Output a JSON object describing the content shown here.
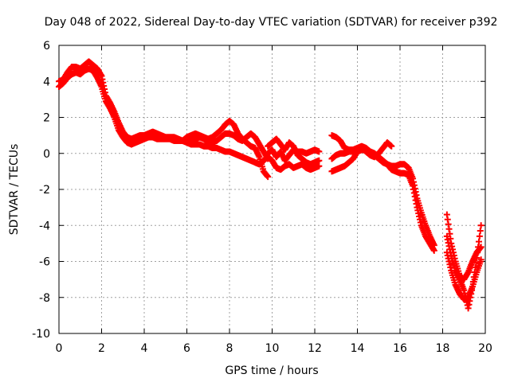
{
  "chart_data": {
    "type": "scatter",
    "title": "Day 048 of 2022, Sidereal Day-to-day VTEC variation (SDTVAR) for receiver p392",
    "xlabel": "GPS time / hours",
    "ylabel": "SDTVAR / TECUs",
    "xlim": [
      0,
      20
    ],
    "ylim": [
      -10,
      6
    ],
    "x_ticks": [
      "0",
      "2",
      "4",
      "6",
      "8",
      "10",
      "12",
      "14",
      "16",
      "18",
      "20"
    ],
    "y_ticks": [
      "6",
      "4",
      "2",
      "0",
      "-2",
      "-4",
      "-6",
      "-8",
      "-10"
    ],
    "grid": true,
    "marker": "+",
    "series": [
      {
        "name": "SDTVAR",
        "color": "#ff0000",
        "tracks": [
          [
            [
              0.0,
              4.0
            ],
            [
              0.2,
              4.1
            ],
            [
              0.4,
              4.5
            ],
            [
              0.6,
              4.8
            ],
            [
              0.8,
              4.8
            ],
            [
              1.0,
              4.7
            ],
            [
              1.2,
              4.9
            ],
            [
              1.4,
              5.1
            ],
            [
              1.6,
              4.9
            ],
            [
              1.8,
              4.7
            ],
            [
              2.0,
              4.3
            ],
            [
              2.2,
              3.2
            ],
            [
              2.4,
              2.8
            ],
            [
              2.6,
              2.3
            ],
            [
              2.8,
              1.7
            ],
            [
              3.0,
              1.2
            ],
            [
              3.2,
              0.9
            ],
            [
              3.4,
              0.8
            ],
            [
              3.6,
              0.9
            ],
            [
              3.8,
              1.0
            ],
            [
              4.0,
              1.0
            ],
            [
              4.2,
              1.1
            ],
            [
              4.4,
              1.2
            ],
            [
              4.6,
              1.1
            ],
            [
              4.8,
              1.0
            ],
            [
              5.0,
              0.9
            ],
            [
              5.2,
              0.9
            ],
            [
              5.4,
              0.9
            ],
            [
              5.6,
              0.8
            ],
            [
              5.8,
              0.7
            ],
            [
              6.0,
              0.6
            ],
            [
              6.2,
              0.5
            ],
            [
              6.4,
              0.5
            ],
            [
              6.6,
              0.5
            ],
            [
              6.8,
              0.4
            ],
            [
              7.0,
              0.4
            ],
            [
              7.2,
              0.3
            ],
            [
              7.4,
              0.3
            ],
            [
              7.6,
              0.2
            ],
            [
              7.8,
              0.1
            ],
            [
              8.0,
              0.1
            ],
            [
              8.2,
              0.0
            ],
            [
              8.4,
              -0.1
            ],
            [
              8.6,
              -0.2
            ],
            [
              8.8,
              -0.3
            ],
            [
              9.0,
              -0.4
            ],
            [
              9.2,
              -0.5
            ],
            [
              9.4,
              -0.6
            ],
            [
              9.6,
              -0.4
            ],
            [
              9.8,
              -0.2
            ]
          ],
          [
            [
              0.0,
              3.7
            ],
            [
              0.2,
              3.9
            ],
            [
              0.4,
              4.2
            ],
            [
              0.6,
              4.4
            ],
            [
              0.8,
              4.5
            ],
            [
              1.0,
              4.4
            ],
            [
              1.2,
              4.6
            ],
            [
              1.4,
              4.7
            ],
            [
              1.6,
              4.6
            ],
            [
              1.8,
              4.2
            ],
            [
              2.0,
              3.7
            ],
            [
              2.2,
              2.9
            ],
            [
              2.4,
              2.5
            ],
            [
              2.6,
              2.0
            ],
            [
              2.8,
              1.3
            ],
            [
              3.0,
              0.9
            ],
            [
              3.2,
              0.6
            ],
            [
              3.4,
              0.5
            ],
            [
              3.6,
              0.6
            ],
            [
              3.8,
              0.7
            ],
            [
              4.0,
              0.8
            ],
            [
              4.2,
              0.9
            ],
            [
              4.4,
              0.9
            ],
            [
              4.6,
              0.8
            ],
            [
              4.8,
              0.8
            ],
            [
              5.0,
              0.8
            ],
            [
              5.2,
              0.8
            ],
            [
              5.4,
              0.7
            ],
            [
              5.6,
              0.7
            ],
            [
              5.8,
              0.7
            ],
            [
              6.0,
              0.9
            ],
            [
              6.2,
              1.0
            ],
            [
              6.4,
              1.1
            ],
            [
              6.6,
              1.0
            ],
            [
              6.8,
              0.9
            ],
            [
              7.0,
              0.8
            ],
            [
              7.2,
              0.9
            ],
            [
              7.4,
              1.1
            ],
            [
              7.6,
              1.3
            ],
            [
              7.8,
              1.6
            ],
            [
              8.0,
              1.8
            ],
            [
              8.2,
              1.6
            ],
            [
              8.4,
              1.1
            ],
            [
              8.6,
              0.8
            ],
            [
              8.8,
              0.6
            ],
            [
              9.0,
              0.4
            ],
            [
              9.2,
              0.3
            ],
            [
              9.4,
              -0.2
            ],
            [
              9.6,
              -1.0
            ],
            [
              9.8,
              -1.3
            ]
          ],
          [
            [
              6.0,
              0.9
            ],
            [
              6.2,
              0.8
            ],
            [
              6.4,
              0.8
            ],
            [
              6.6,
              0.9
            ],
            [
              6.8,
              0.8
            ],
            [
              7.0,
              0.6
            ],
            [
              7.2,
              0.6
            ],
            [
              7.4,
              0.7
            ],
            [
              7.6,
              0.9
            ],
            [
              7.8,
              1.1
            ],
            [
              8.0,
              1.1
            ],
            [
              8.2,
              1.0
            ],
            [
              8.4,
              0.8
            ],
            [
              8.6,
              0.7
            ],
            [
              8.8,
              0.9
            ],
            [
              9.0,
              1.1
            ],
            [
              9.2,
              0.9
            ],
            [
              9.4,
              0.5
            ],
            [
              9.6,
              0.1
            ],
            [
              9.8,
              -0.3
            ]
          ],
          [
            [
              9.8,
              0.4
            ],
            [
              10.0,
              0.6
            ],
            [
              10.2,
              0.8
            ],
            [
              10.4,
              0.5
            ],
            [
              10.6,
              0.2
            ],
            [
              10.8,
              0.6
            ],
            [
              11.0,
              0.4
            ],
            [
              11.2,
              -0.1
            ],
            [
              11.4,
              -0.3
            ],
            [
              11.6,
              -0.5
            ],
            [
              11.8,
              -0.6
            ],
            [
              12.0,
              -0.5
            ],
            [
              12.2,
              -0.4
            ]
          ],
          [
            [
              9.8,
              -0.2
            ],
            [
              10.0,
              -0.4
            ],
            [
              10.2,
              -0.8
            ],
            [
              10.4,
              -0.9
            ],
            [
              10.6,
              -0.7
            ],
            [
              10.8,
              -0.6
            ],
            [
              11.0,
              -0.8
            ],
            [
              11.2,
              -0.7
            ],
            [
              11.4,
              -0.6
            ],
            [
              11.6,
              -0.8
            ],
            [
              11.8,
              -0.9
            ],
            [
              12.0,
              -0.8
            ],
            [
              12.2,
              -0.7
            ]
          ],
          [
            [
              9.8,
              0.0
            ],
            [
              10.0,
              0.2
            ],
            [
              10.2,
              -0.2
            ],
            [
              10.4,
              0.1
            ],
            [
              10.6,
              -0.4
            ],
            [
              10.8,
              -0.1
            ],
            [
              11.0,
              0.2
            ],
            [
              11.2,
              0.1
            ],
            [
              11.4,
              0.1
            ],
            [
              11.6,
              0.0
            ],
            [
              11.8,
              0.1
            ],
            [
              12.0,
              0.2
            ],
            [
              12.2,
              0.1
            ]
          ],
          [
            [
              12.8,
              1.0
            ],
            [
              13.0,
              0.9
            ],
            [
              13.2,
              0.7
            ],
            [
              13.4,
              0.3
            ],
            [
              13.6,
              0.2
            ],
            [
              13.8,
              0.2
            ],
            [
              14.0,
              0.3
            ],
            [
              14.2,
              0.4
            ],
            [
              14.4,
              0.3
            ],
            [
              14.6,
              0.1
            ],
            [
              14.8,
              0.0
            ],
            [
              15.0,
              -0.2
            ],
            [
              15.2,
              -0.4
            ],
            [
              15.4,
              -0.6
            ],
            [
              15.6,
              -0.9
            ],
            [
              15.8,
              -1.0
            ],
            [
              16.0,
              -1.1
            ],
            [
              16.2,
              -1.1
            ],
            [
              16.4,
              -1.2
            ],
            [
              16.6,
              -1.8
            ],
            [
              16.8,
              -3.0
            ],
            [
              17.0,
              -4.0
            ],
            [
              17.2,
              -4.6
            ],
            [
              17.4,
              -5.0
            ],
            [
              17.6,
              -5.4
            ]
          ],
          [
            [
              12.8,
              -1.0
            ],
            [
              13.0,
              -0.9
            ],
            [
              13.2,
              -0.8
            ],
            [
              13.4,
              -0.7
            ],
            [
              13.6,
              -0.5
            ],
            [
              13.8,
              -0.3
            ],
            [
              14.0,
              0.1
            ],
            [
              14.2,
              0.2
            ],
            [
              14.4,
              0.2
            ],
            [
              14.6,
              0.1
            ],
            [
              14.8,
              -0.1
            ],
            [
              15.0,
              -0.3
            ],
            [
              15.2,
              -0.5
            ],
            [
              15.4,
              -0.6
            ],
            [
              15.6,
              -0.7
            ],
            [
              15.8,
              -0.7
            ],
            [
              16.0,
              -0.6
            ],
            [
              16.2,
              -0.6
            ],
            [
              16.4,
              -0.8
            ],
            [
              16.6,
              -1.4
            ],
            [
              16.8,
              -2.5
            ],
            [
              17.0,
              -3.3
            ],
            [
              17.2,
              -4.0
            ],
            [
              17.4,
              -4.6
            ],
            [
              17.6,
              -5.1
            ]
          ],
          [
            [
              12.8,
              -0.3
            ],
            [
              13.0,
              -0.1
            ],
            [
              13.2,
              0.0
            ],
            [
              13.4,
              0.0
            ],
            [
              13.6,
              0.1
            ],
            [
              13.8,
              0.1
            ],
            [
              14.0,
              0.2
            ],
            [
              14.2,
              0.3
            ],
            [
              14.4,
              0.1
            ],
            [
              14.6,
              -0.1
            ],
            [
              14.8,
              -0.2
            ],
            [
              15.0,
              0.0
            ],
            [
              15.2,
              0.3
            ],
            [
              15.4,
              0.6
            ],
            [
              15.6,
              0.4
            ]
          ],
          [
            [
              18.2,
              -3.4
            ],
            [
              18.4,
              -5.0
            ],
            [
              18.6,
              -6.0
            ],
            [
              18.8,
              -6.8
            ],
            [
              19.0,
              -7.0
            ],
            [
              19.2,
              -6.6
            ],
            [
              19.4,
              -6.0
            ],
            [
              19.6,
              -5.5
            ],
            [
              19.8,
              -5.2
            ]
          ],
          [
            [
              18.2,
              -5.5
            ],
            [
              18.4,
              -6.5
            ],
            [
              18.6,
              -7.3
            ],
            [
              18.8,
              -7.8
            ],
            [
              19.0,
              -8.1
            ],
            [
              19.2,
              -8.0
            ],
            [
              19.4,
              -7.4
            ],
            [
              19.6,
              -6.6
            ],
            [
              19.8,
              -5.9
            ]
          ],
          [
            [
              18.2,
              -4.6
            ],
            [
              18.4,
              -5.7
            ],
            [
              18.6,
              -6.5
            ],
            [
              18.8,
              -7.0
            ],
            [
              19.0,
              -7.6
            ],
            [
              19.2,
              -8.6
            ],
            [
              19.4,
              -7.4
            ],
            [
              19.6,
              -5.8
            ],
            [
              19.8,
              -4.0
            ]
          ]
        ]
      }
    ]
  }
}
